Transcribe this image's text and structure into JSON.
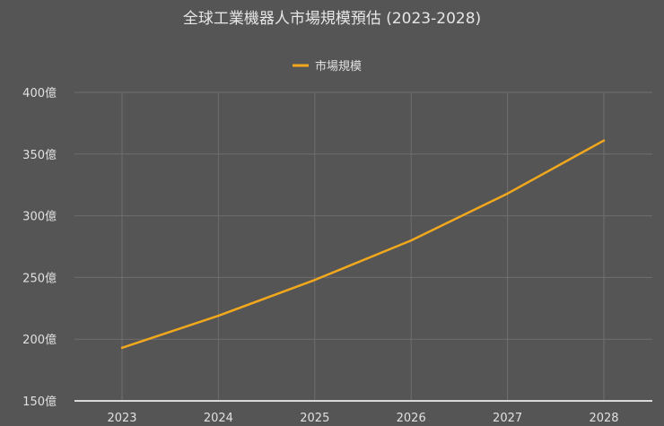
{
  "chart_data": {
    "type": "line",
    "title": "全球工業機器人市場規模預估 (2023-2028)",
    "xlabel": "",
    "ylabel": "",
    "categories": [
      "2023",
      "2024",
      "2025",
      "2026",
      "2027",
      "2028"
    ],
    "series": [
      {
        "name": "市場規模",
        "color": "#f2a81d",
        "values": [
          193,
          219,
          248,
          280,
          318,
          361
        ]
      }
    ],
    "ylim": [
      150,
      400
    ],
    "yticks": [
      150,
      200,
      250,
      300,
      350,
      400
    ],
    "ytick_labels": [
      "150億",
      "200億",
      "250億",
      "300億",
      "350億",
      "400億"
    ],
    "grid": true,
    "legend_position": "top"
  },
  "colors": {
    "background": "#555555",
    "line": "#f2a81d",
    "grid": "#6e6e6e",
    "axis": "#d9d9d9",
    "text": "#e0e0e0"
  }
}
